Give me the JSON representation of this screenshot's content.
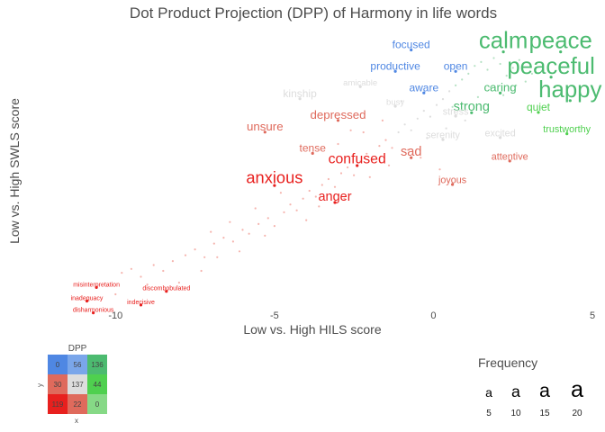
{
  "chart_data": {
    "type": "scatter",
    "title": "Dot Product Projection (DPP) of Harmony in life words",
    "xlabel": "Low vs. High HILS score",
    "ylabel": "Low vs. High SWLS score",
    "xlim": [
      -12.5,
      5
    ],
    "ylim": [
      -6.4,
      7.8
    ],
    "x_ticks": [
      -10,
      -5,
      0,
      5
    ],
    "grid": false,
    "colors": {
      "red": "#e8201e",
      "salmon": "#df6a5c",
      "light_gray": "#dddddd",
      "blue": "#4f87e3",
      "green": "#4cbb70",
      "bright_green": "#4fd04f"
    },
    "labeled_points": [
      {
        "text": "calm",
        "x": 2.2,
        "y": 6.8,
        "freq": 20,
        "color": "green"
      },
      {
        "text": "peace",
        "x": 4.0,
        "y": 6.8,
        "freq": 20,
        "color": "green"
      },
      {
        "text": "peaceful",
        "x": 3.7,
        "y": 5.5,
        "freq": 20,
        "color": "green"
      },
      {
        "text": "happy",
        "x": 4.3,
        "y": 4.3,
        "freq": 20,
        "color": "green"
      },
      {
        "text": "caring",
        "x": 2.1,
        "y": 4.6,
        "freq": 10,
        "color": "green"
      },
      {
        "text": "strong",
        "x": 1.2,
        "y": 3.6,
        "freq": 11,
        "color": "green"
      },
      {
        "text": "quiet",
        "x": 3.3,
        "y": 3.6,
        "freq": 9,
        "color": "bright_green"
      },
      {
        "text": "trustworthy",
        "x": 4.2,
        "y": 2.5,
        "freq": 8,
        "color": "bright_green"
      },
      {
        "text": "focused",
        "x": -0.7,
        "y": 6.8,
        "freq": 9,
        "color": "blue"
      },
      {
        "text": "productive",
        "x": -1.2,
        "y": 5.7,
        "freq": 9,
        "color": "blue"
      },
      {
        "text": "open",
        "x": 0.7,
        "y": 5.7,
        "freq": 9,
        "color": "blue"
      },
      {
        "text": "aware",
        "x": -0.3,
        "y": 4.6,
        "freq": 9,
        "color": "blue"
      },
      {
        "text": "kinship",
        "x": -4.2,
        "y": 4.3,
        "freq": 9,
        "color": "light_gray"
      },
      {
        "text": "amicable",
        "x": -2.3,
        "y": 4.9,
        "freq": 7,
        "color": "light_gray"
      },
      {
        "text": "busy",
        "x": -1.2,
        "y": 3.9,
        "freq": 7,
        "color": "light_gray"
      },
      {
        "text": "stress",
        "x": 0.7,
        "y": 3.4,
        "freq": 8,
        "color": "light_gray"
      },
      {
        "text": "serenity",
        "x": 0.3,
        "y": 2.2,
        "freq": 8,
        "color": "light_gray"
      },
      {
        "text": "excited",
        "x": 2.1,
        "y": 2.3,
        "freq": 8,
        "color": "light_gray"
      },
      {
        "text": "depressed",
        "x": -3.0,
        "y": 3.2,
        "freq": 10,
        "color": "salmon"
      },
      {
        "text": "unsure",
        "x": -5.3,
        "y": 2.6,
        "freq": 10,
        "color": "salmon"
      },
      {
        "text": "tense",
        "x": -3.8,
        "y": 1.5,
        "freq": 9,
        "color": "salmon"
      },
      {
        "text": "sad",
        "x": -0.7,
        "y": 1.3,
        "freq": 11,
        "color": "salmon"
      },
      {
        "text": "attentive",
        "x": 2.4,
        "y": 1.1,
        "freq": 8,
        "color": "salmon"
      },
      {
        "text": "joyous",
        "x": 0.6,
        "y": -0.1,
        "freq": 8,
        "color": "salmon"
      },
      {
        "text": "confused",
        "x": -2.4,
        "y": 0.9,
        "freq": 12,
        "color": "red"
      },
      {
        "text": "anxious",
        "x": -5.0,
        "y": -0.1,
        "freq": 14,
        "color": "red"
      },
      {
        "text": "anger",
        "x": -3.1,
        "y": -1.0,
        "freq": 11,
        "color": "red"
      },
      {
        "text": "misinterpretation",
        "x": -10.6,
        "y": -5.4,
        "freq": 5,
        "color": "red"
      },
      {
        "text": "discombobulated",
        "x": -8.4,
        "y": -5.6,
        "freq": 5,
        "color": "red"
      },
      {
        "text": "inadequacy",
        "x": -10.9,
        "y": -6.1,
        "freq": 5,
        "color": "red"
      },
      {
        "text": "indecisive",
        "x": -9.2,
        "y": -6.3,
        "freq": 5,
        "color": "red"
      },
      {
        "text": "disharmonious",
        "x": -10.7,
        "y": -6.7,
        "freq": 5,
        "color": "red"
      }
    ],
    "background_points": [
      [
        -9.8,
        -4.7
      ],
      [
        -9.5,
        -4.5
      ],
      [
        -9.2,
        -4.9
      ],
      [
        -8.8,
        -4.3
      ],
      [
        -8.5,
        -4.6
      ],
      [
        -8.2,
        -4.1
      ],
      [
        -7.8,
        -3.8
      ],
      [
        -7.5,
        -3.5
      ],
      [
        -7.2,
        -3.9
      ],
      [
        -6.9,
        -3.2
      ],
      [
        -6.6,
        -2.9
      ],
      [
        -6.3,
        -3.1
      ],
      [
        -6.0,
        -2.5
      ],
      [
        -5.8,
        -2.7
      ],
      [
        -5.5,
        -2.2
      ],
      [
        -5.2,
        -1.9
      ],
      [
        -5.0,
        -2.3
      ],
      [
        -4.7,
        -1.6
      ],
      [
        -4.5,
        -1.2
      ],
      [
        -4.3,
        -1.5
      ],
      [
        -4.1,
        -0.9
      ],
      [
        -3.9,
        -0.5
      ],
      [
        -3.7,
        -0.8
      ],
      [
        -3.5,
        -0.2
      ],
      [
        -3.3,
        0.1
      ],
      [
        -3.1,
        -0.3
      ],
      [
        -2.9,
        0.4
      ],
      [
        -2.7,
        0.7
      ],
      [
        -2.5,
        0.3
      ],
      [
        -2.3,
        1.0
      ],
      [
        -2.1,
        1.4
      ],
      [
        -1.9,
        1.1
      ],
      [
        -1.7,
        1.8
      ],
      [
        -1.5,
        2.1
      ],
      [
        -1.3,
        1.7
      ],
      [
        -1.1,
        2.5
      ],
      [
        -0.9,
        2.9
      ],
      [
        -0.7,
        2.6
      ],
      [
        -0.5,
        3.2
      ],
      [
        -0.3,
        3.6
      ],
      [
        -0.1,
        3.3
      ],
      [
        0.1,
        3.9
      ],
      [
        0.3,
        4.2
      ],
      [
        0.5,
        4.6
      ],
      [
        0.7,
        4.9
      ],
      [
        0.9,
        5.2
      ],
      [
        1.1,
        5.5
      ],
      [
        1.3,
        5.9
      ],
      [
        1.5,
        6.1
      ],
      [
        1.7,
        5.7
      ],
      [
        1.9,
        6.3
      ],
      [
        2.1,
        6.0
      ],
      [
        2.3,
        5.4
      ],
      [
        2.5,
        5.8
      ],
      [
        2.7,
        6.2
      ],
      [
        2.9,
        5.1
      ],
      [
        3.1,
        5.5
      ],
      [
        1.8,
        4.8
      ],
      [
        2.2,
        4.4
      ],
      [
        2.6,
        4.9
      ],
      [
        -3.6,
        -1.3
      ],
      [
        -4.8,
        -0.6
      ],
      [
        -5.6,
        -1.4
      ],
      [
        -6.4,
        -2.1
      ],
      [
        -7.0,
        -2.6
      ],
      [
        -6.1,
        -3.6
      ],
      [
        -5.3,
        -2.8
      ],
      [
        -4.0,
        -2.0
      ],
      [
        -2.8,
        -0.9
      ],
      [
        -2.0,
        0.2
      ],
      [
        -1.4,
        0.8
      ],
      [
        -0.8,
        1.6
      ],
      [
        -0.2,
        2.2
      ],
      [
        0.4,
        2.7
      ],
      [
        1.0,
        3.1
      ],
      [
        1.6,
        3.5
      ],
      [
        -1.6,
        3.1
      ],
      [
        -2.2,
        2.5
      ],
      [
        -0.4,
        1.2
      ],
      [
        0.2,
        0.6
      ],
      [
        -8.0,
        -5.2
      ],
      [
        -9.0,
        -5.3
      ],
      [
        -7.3,
        -4.6
      ],
      [
        -10.0,
        -5.8
      ],
      [
        -6.8,
        -3.9
      ],
      [
        -3.0,
        1.9
      ],
      [
        -2.6,
        2.6
      ],
      [
        -1.0,
        4.1
      ],
      [
        0.6,
        3.8
      ],
      [
        1.4,
        4.3
      ]
    ],
    "dpp_legend": {
      "title": "DPP",
      "x_axis": "x",
      "y_axis": "y",
      "cells": [
        [
          {
            "value": "0",
            "color": "#4f87e3"
          },
          {
            "value": "56",
            "color": "#7aa6ea"
          },
          {
            "value": "136",
            "color": "#4cbb70"
          }
        ],
        [
          {
            "value": "30",
            "color": "#df6a5c"
          },
          {
            "value": "137",
            "color": "#dddddd"
          },
          {
            "value": "44",
            "color": "#4fd04f"
          }
        ],
        [
          {
            "value": "119",
            "color": "#e8201e"
          },
          {
            "value": "22",
            "color": "#df6a5c"
          },
          {
            "value": "0",
            "color": "#86d986"
          }
        ]
      ]
    },
    "frequency_legend": {
      "title": "Frequency",
      "glyph": "a",
      "levels": [
        "5",
        "10",
        "15",
        "20"
      ]
    }
  }
}
